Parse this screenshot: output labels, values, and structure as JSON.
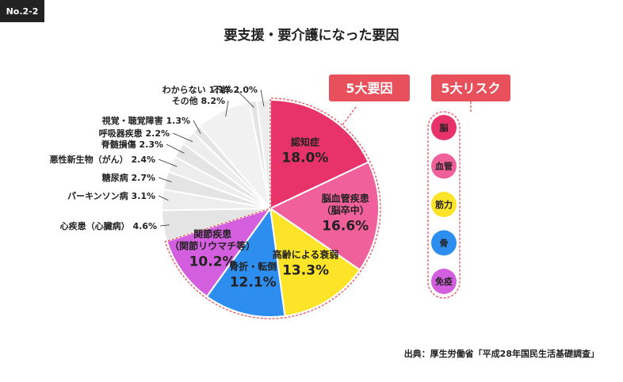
{
  "badge": "No.2-2",
  "chart_data": {
    "type": "pie",
    "title": "要支援・要介護になった要因",
    "slices": [
      {
        "label": "認知症",
        "value": 18.0,
        "display": "18.0%",
        "color": "#e8326a",
        "group": "major"
      },
      {
        "label": "脳血管疾患",
        "sublabel": "（脳卒中）",
        "value": 16.6,
        "display": "16.6%",
        "color": "#f0609a",
        "group": "major"
      },
      {
        "label": "高齢による衰弱",
        "value": 13.3,
        "display": "13.3%",
        "color": "#fde428",
        "group": "major"
      },
      {
        "label": "骨折・転倒",
        "value": 12.1,
        "display": "12.1%",
        "color": "#2e8ef0",
        "group": "major"
      },
      {
        "label": "関節疾患",
        "sublabel": "（関節リウマチ等）",
        "value": 10.2,
        "display": "10.2%",
        "color": "#d45fde",
        "group": "major"
      },
      {
        "label": "心疾患（心臓病）",
        "value": 4.6,
        "display": "4.6%",
        "color": "#e4e4e4",
        "group": "minor"
      },
      {
        "label": "パーキンソン病",
        "value": 3.1,
        "display": "3.1%",
        "color": "#ededed",
        "group": "minor"
      },
      {
        "label": "糖尿病",
        "value": 2.7,
        "display": "2.7%",
        "color": "#e4e4e4",
        "group": "minor"
      },
      {
        "label": "悪性新生物（がん）",
        "value": 2.4,
        "display": "2.4%",
        "color": "#ededed",
        "group": "minor"
      },
      {
        "label": "脊髄損傷",
        "value": 2.3,
        "display": "2.3%",
        "color": "#e4e4e4",
        "group": "minor"
      },
      {
        "label": "呼吸器疾患",
        "value": 2.2,
        "display": "2.2%",
        "color": "#ededed",
        "group": "minor"
      },
      {
        "label": "視覚・聴覚障害",
        "value": 1.3,
        "display": "1.3%",
        "color": "#e4e4e4",
        "group": "minor"
      },
      {
        "label": "その他",
        "value": 8.2,
        "display": "8.2%",
        "color": "#f1f1f1",
        "group": "minor"
      },
      {
        "label": "わからない",
        "value": 1.1,
        "display": "1.1%",
        "color": "#e4e4e4",
        "group": "minor"
      },
      {
        "label": "不詳",
        "value": 2.0,
        "display": "2.0%",
        "color": "#ededed",
        "group": "minor"
      }
    ]
  },
  "five_factors": {
    "label": "5大要因",
    "color": "#e8505b"
  },
  "five_risks": {
    "label": "5大リスク",
    "items": [
      {
        "label": "脳",
        "color": "#e8326a"
      },
      {
        "label": "血管",
        "color": "#f0609a"
      },
      {
        "label": "筋力",
        "color": "#fde428"
      },
      {
        "label": "骨",
        "color": "#2e8ef0"
      },
      {
        "label": "免疫",
        "color": "#d45fde"
      }
    ]
  },
  "source": "出典：厚生労働省「平成28年国民生活基礎調査」"
}
